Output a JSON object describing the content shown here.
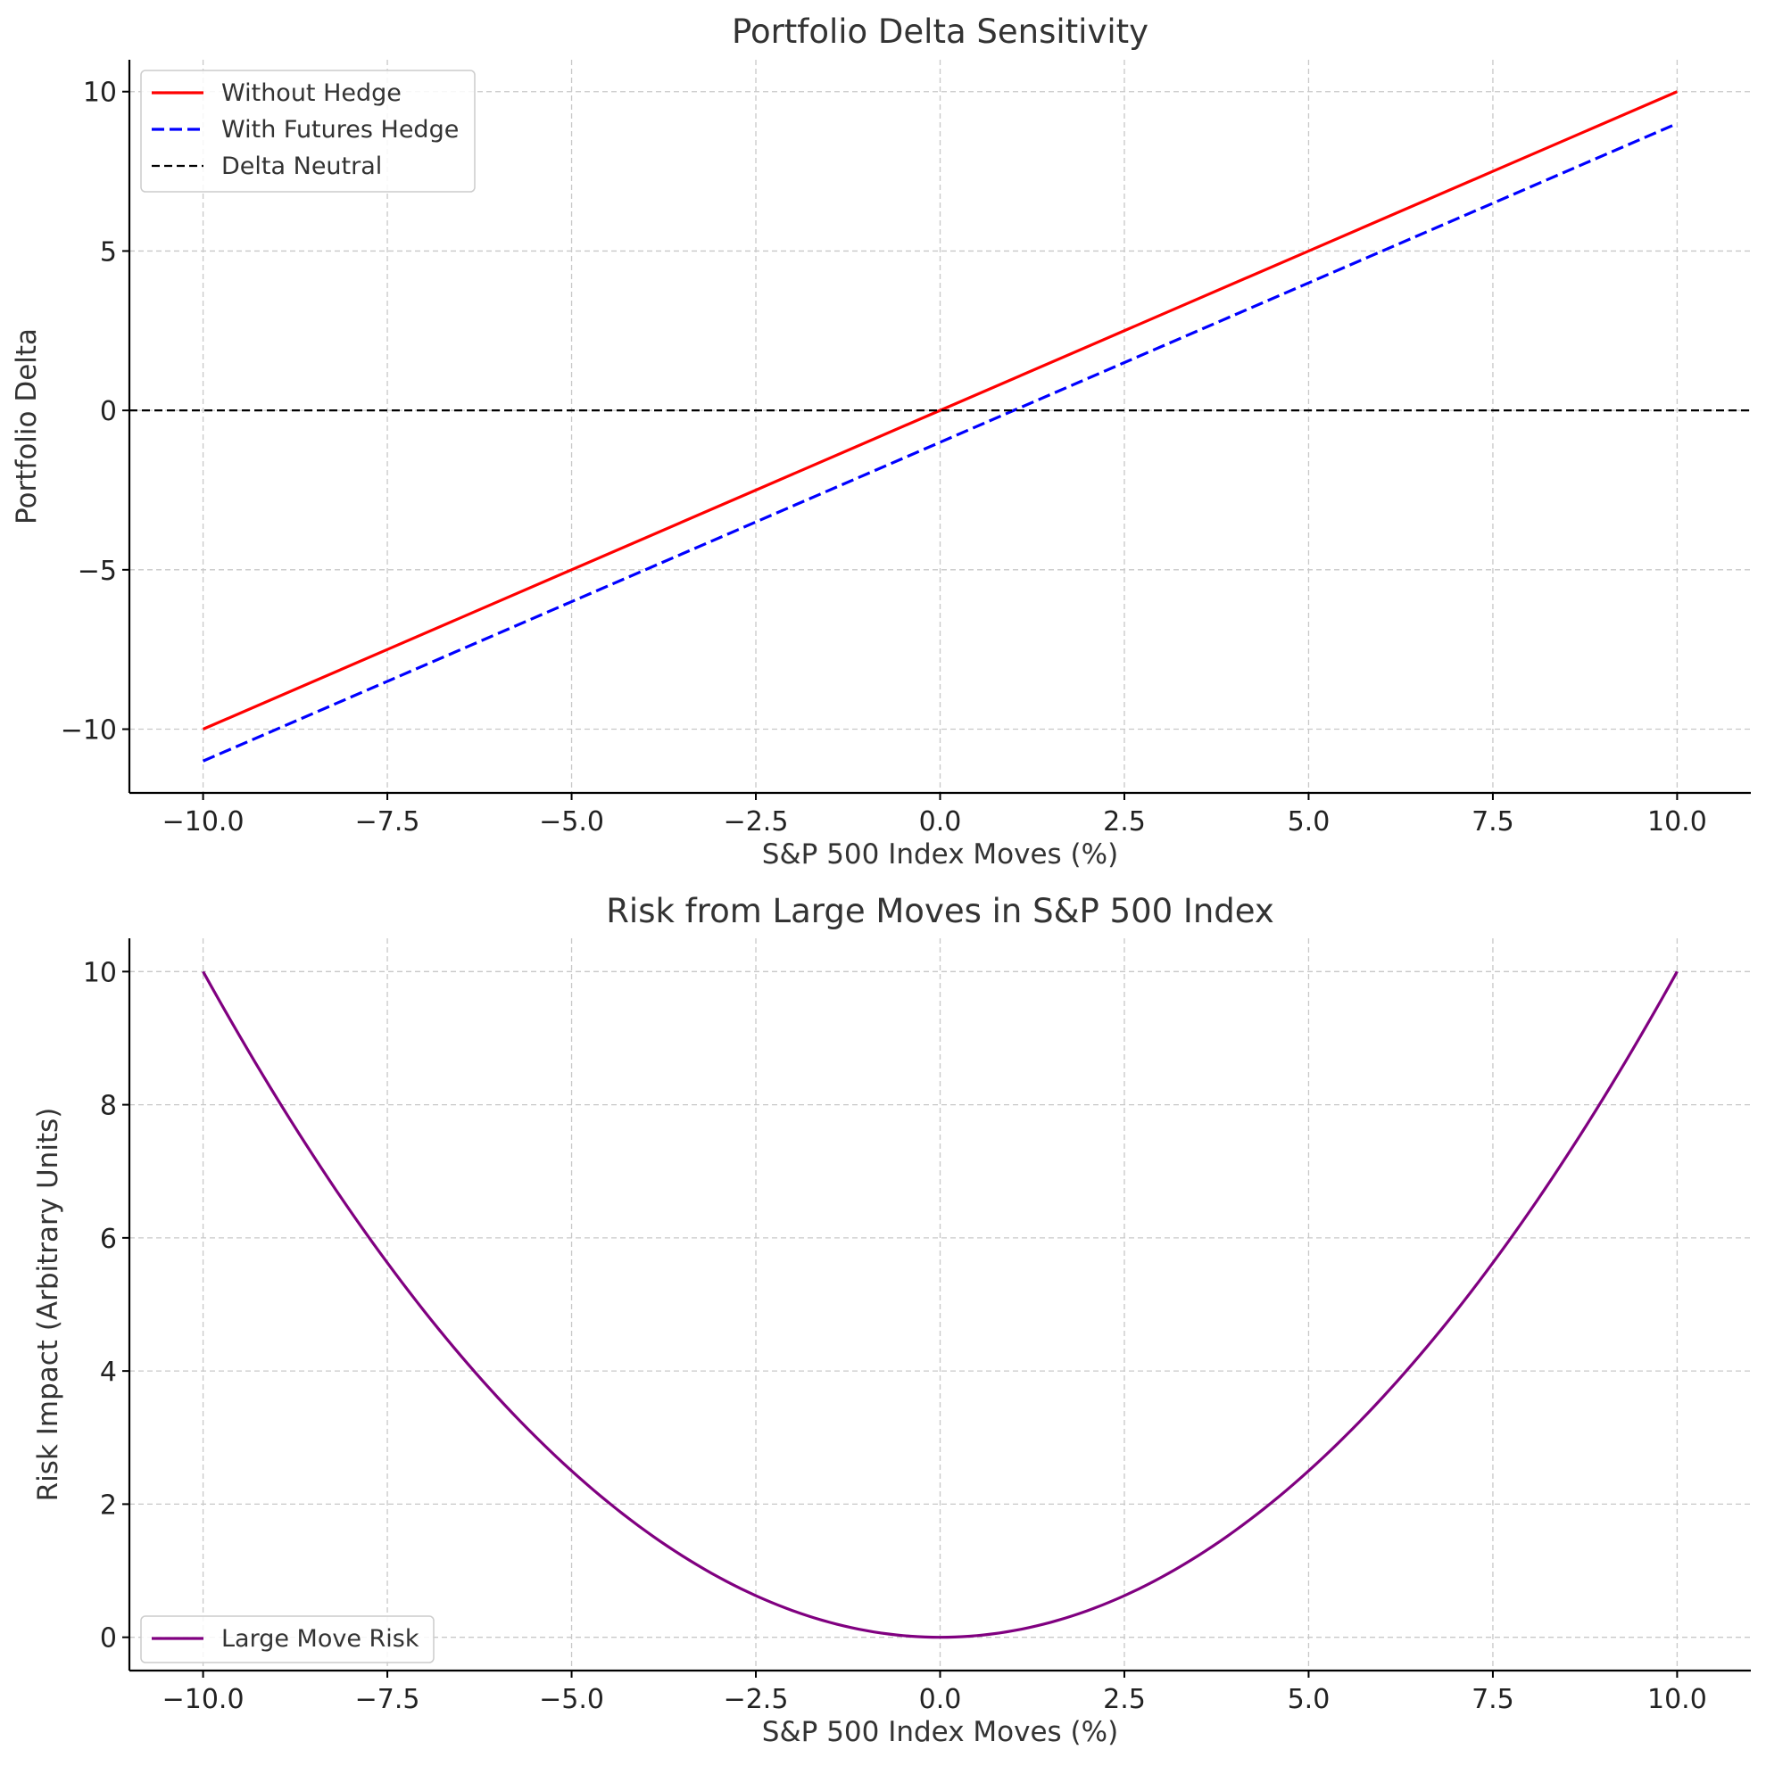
{
  "chart_data": [
    {
      "type": "line",
      "title": "Portfolio Delta Sensitivity",
      "xlabel": "S&P 500 Index Moves (%)",
      "ylabel": "Portfolio Delta",
      "xlim": [
        -11,
        11
      ],
      "ylim": [
        -12,
        11
      ],
      "xticks": [
        -10,
        -7.5,
        -5,
        -2.5,
        0,
        2.5,
        5,
        7.5,
        10
      ],
      "xtick_labels": [
        "−10.0",
        "−7.5",
        "−5.0",
        "−2.5",
        "0.0",
        "2.5",
        "5.0",
        "7.5",
        "10.0"
      ],
      "yticks": [
        -10,
        -5,
        0,
        5,
        10
      ],
      "ytick_labels": [
        "−10",
        "−5",
        "0",
        "5",
        "10"
      ],
      "grid": true,
      "legend_position": "top-left",
      "series": [
        {
          "name": "Without Hedge",
          "color": "#ff0000",
          "style": "solid",
          "x": [
            -10,
            -7.5,
            -5,
            -2.5,
            0,
            2.5,
            5,
            7.5,
            10
          ],
          "y": [
            -10,
            -7.5,
            -5,
            -2.5,
            0,
            2.5,
            5,
            7.5,
            10
          ]
        },
        {
          "name": "With Futures Hedge",
          "color": "#0000ff",
          "style": "dashed",
          "x": [
            -10,
            -7.5,
            -5,
            -2.5,
            0,
            2.5,
            5,
            7.5,
            10
          ],
          "y": [
            -11,
            -8.5,
            -6,
            -3.5,
            -1,
            1.5,
            4,
            6.5,
            9
          ]
        },
        {
          "name": "Delta Neutral",
          "color": "#000000",
          "style": "dashed-thin",
          "hline": 0
        }
      ]
    },
    {
      "type": "line",
      "title": "Risk from Large Moves in S&P 500 Index",
      "xlabel": "S&P 500 Index Moves (%)",
      "ylabel": "Risk Impact (Arbitrary Units)",
      "xlim": [
        -11,
        11
      ],
      "ylim": [
        -0.5,
        10.5
      ],
      "xticks": [
        -10,
        -7.5,
        -5,
        -2.5,
        0,
        2.5,
        5,
        7.5,
        10
      ],
      "xtick_labels": [
        "−10.0",
        "−7.5",
        "−5.0",
        "−2.5",
        "0.0",
        "2.5",
        "5.0",
        "7.5",
        "10.0"
      ],
      "yticks": [
        0,
        2,
        4,
        6,
        8,
        10
      ],
      "ytick_labels": [
        "0",
        "2",
        "4",
        "6",
        "8",
        "10"
      ],
      "grid": true,
      "legend_position": "bottom-left",
      "series": [
        {
          "name": "Large Move Risk",
          "color": "#800080",
          "style": "solid",
          "x": [
            -10,
            -9,
            -8,
            -7,
            -6,
            -5,
            -4,
            -3,
            -2,
            -1,
            0,
            1,
            2,
            3,
            4,
            5,
            6,
            7,
            8,
            9,
            10
          ],
          "y": [
            10,
            8.1,
            6.4,
            4.9,
            3.6,
            2.5,
            1.6,
            0.9,
            0.4,
            0.1,
            0,
            0.1,
            0.4,
            0.9,
            1.6,
            2.5,
            3.6,
            4.9,
            6.4,
            8.1,
            10
          ]
        }
      ]
    }
  ]
}
